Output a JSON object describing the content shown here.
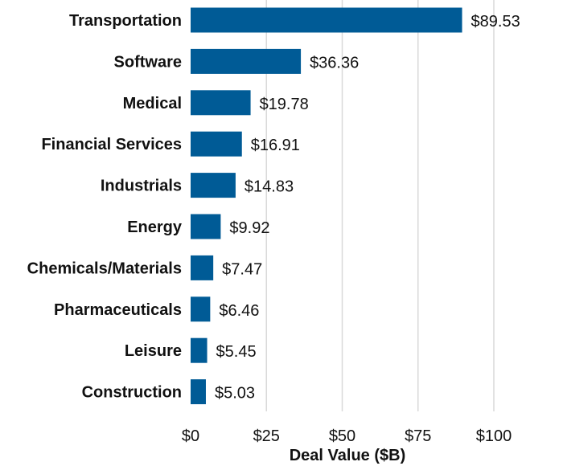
{
  "chart_data": {
    "type": "bar",
    "orientation": "horizontal",
    "title": "",
    "xlabel": "Deal Value ($B)",
    "ylabel": "",
    "xlim": [
      0,
      100
    ],
    "grid": true,
    "categories": [
      "Transportation",
      "Software",
      "Medical",
      "Financial Services",
      "Industrials",
      "Energy",
      "Chemicals/Materials",
      "Pharmaceuticals",
      "Leisure",
      "Construction"
    ],
    "values": [
      89.53,
      36.36,
      19.78,
      16.91,
      14.83,
      9.92,
      7.47,
      6.46,
      5.45,
      5.03
    ],
    "value_labels": [
      "$89.53",
      "$36.36",
      "$19.78",
      "$16.91",
      "$14.83",
      "$9.92",
      "$7.47",
      "$6.46",
      "$5.45",
      "$5.03"
    ],
    "ticks": [
      0,
      25,
      50,
      75,
      100
    ],
    "tick_labels": [
      "$0",
      "$25",
      "$50",
      "$75",
      "$100"
    ],
    "bar_color": "#005B96",
    "grid_color": "#d9d9d9"
  }
}
